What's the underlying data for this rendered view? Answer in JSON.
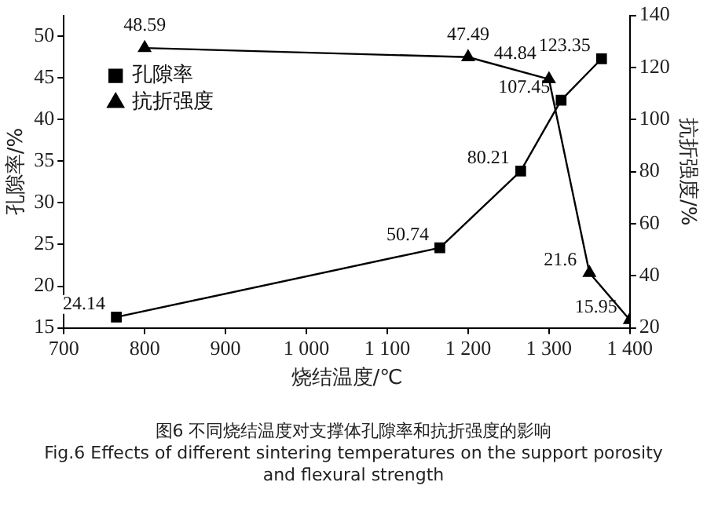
{
  "chart_data": {
    "type": "line",
    "xlabel": "烧结温度/℃",
    "ylabel": "孔隙率/%",
    "y2label": "抗折强度/%",
    "xlim": [
      700,
      1400
    ],
    "xticks": [
      700,
      800,
      900,
      {
        "value": 1000,
        "label": "1 000"
      },
      {
        "value": 1100,
        "label": "1 100"
      },
      {
        "value": 1200,
        "label": "1 200"
      },
      {
        "value": 1300,
        "label": "1 300"
      },
      {
        "value": 1400,
        "label": "1 400"
      }
    ],
    "ylim": [
      15,
      52.5
    ],
    "yticks": [
      15,
      20,
      25,
      30,
      35,
      40,
      45,
      50
    ],
    "y2lim": [
      20,
      140
    ],
    "y2ticks": [
      20,
      40,
      60,
      80,
      100,
      120,
      140
    ],
    "series": [
      {
        "name": "孔隙率",
        "color": "#000000",
        "marker": "square",
        "axis": "y2",
        "x": [
          765,
          1165,
          1265,
          1315,
          1365
        ],
        "values": [
          24.14,
          50.74,
          80.21,
          107.45,
          123.35
        ]
      },
      {
        "name": "抗折强度",
        "color": "#000000",
        "marker": "triangle",
        "axis": "y",
        "x": [
          800,
          1200,
          1300,
          1350,
          1400
        ],
        "values": [
          48.59,
          47.49,
          44.84,
          21.6,
          15.95
        ]
      }
    ],
    "data_labels": true,
    "grid": false,
    "legend": "top left",
    "annotations": [
      "图6 不同烧结温度对支撑体孔隙率和抗折强度的影响",
      "Fig.6 Effects of different sintering temperatures on the support porosity and flexural strength"
    ]
  }
}
